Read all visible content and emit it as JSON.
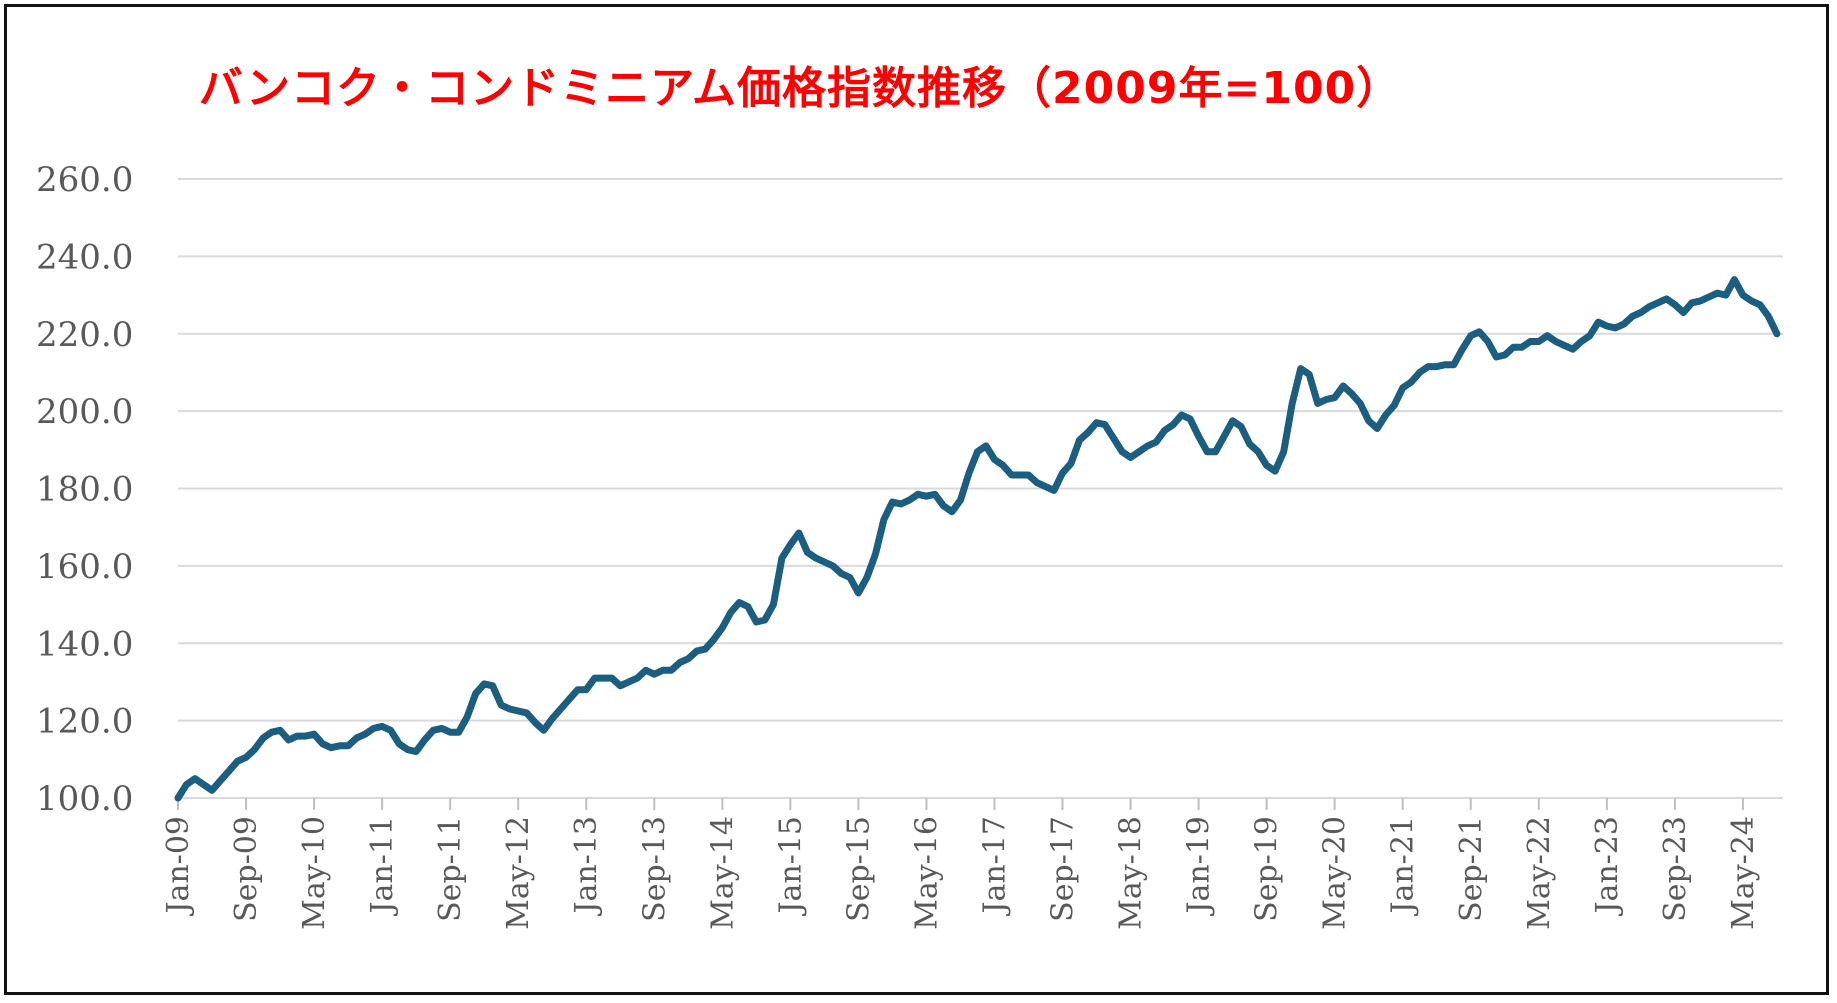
{
  "chart_data": {
    "type": "line",
    "title": "バンコク・コンドミニアム価格指数推移（2009年=100）",
    "xlabel": "",
    "ylabel": "",
    "ylim": [
      100,
      260
    ],
    "y_ticks": [
      "100.0",
      "120.0",
      "140.0",
      "160.0",
      "180.0",
      "200.0",
      "220.0",
      "240.0",
      "260.0"
    ],
    "x_tick_labels": [
      "Jan-09",
      "Sep-09",
      "May-10",
      "Jan-11",
      "Sep-11",
      "May-12",
      "Jan-13",
      "Sep-13",
      "May-14",
      "Jan-15",
      "Sep-15",
      "May-16",
      "Jan-17",
      "Sep-17",
      "May-18",
      "Jan-19",
      "Sep-19",
      "May-20",
      "Jan-21",
      "Sep-21",
      "May-22",
      "Jan-23",
      "Sep-23",
      "May-24"
    ],
    "grid": true,
    "legend": "none",
    "line_color": "#1b5e80",
    "grid_color": "#d9d9d9",
    "start": "2009-01",
    "frequency": "monthly",
    "series": [
      {
        "values": [
          100.0,
          103.5,
          105.0,
          103.5,
          102.0,
          104.5,
          107.0,
          109.5,
          110.5,
          112.5,
          115.5,
          117.0,
          117.5,
          115.0,
          116.0,
          116.0,
          116.5,
          114.0,
          113.0,
          113.5,
          113.5,
          115.5,
          116.5,
          118.0,
          118.5,
          117.5,
          114.0,
          112.5,
          112.0,
          115.0,
          117.5,
          118.0,
          117.0,
          117.0,
          121.0,
          127.0,
          129.5,
          129.0,
          124.0,
          123.0,
          122.5,
          122.0,
          119.5,
          117.5,
          120.5,
          123.0,
          125.5,
          128.0,
          128.0,
          131.0,
          131.0,
          131.0,
          129.0,
          130.0,
          131.0,
          133.0,
          132.0,
          133.0,
          133.0,
          135.0,
          136.0,
          138.0,
          138.5,
          141.0,
          144.0,
          148.0,
          150.5,
          149.5,
          145.5,
          146.0,
          150.0,
          162.0,
          165.5,
          168.5,
          163.5,
          162.0,
          161.0,
          160.0,
          158.0,
          157.0,
          153.0,
          157.0,
          163.0,
          172.0,
          176.5,
          176.0,
          177.0,
          178.5,
          178.0,
          178.5,
          175.5,
          174.0,
          177.0,
          184.0,
          189.5,
          191.0,
          187.5,
          186.0,
          183.5,
          183.5,
          183.5,
          181.5,
          180.5,
          179.5,
          184.0,
          186.5,
          192.5,
          194.5,
          197.0,
          196.5,
          193.0,
          189.5,
          188.0,
          189.5,
          191.0,
          192.0,
          195.0,
          196.5,
          199.0,
          198.0,
          193.5,
          189.5,
          189.5,
          193.5,
          197.5,
          196.0,
          191.5,
          189.5,
          186.0,
          184.5,
          189.5,
          202.0,
          211.0,
          209.5,
          202.0,
          203.0,
          203.5,
          206.5,
          204.5,
          202.0,
          197.5,
          195.5,
          199.0,
          201.5,
          206.0,
          207.5,
          210.0,
          211.5,
          211.5,
          212.0,
          212.0,
          216.0,
          219.5,
          220.5,
          218.0,
          214.0,
          214.5,
          216.5,
          216.5,
          218.0,
          218.0,
          219.5,
          218.0,
          217.0,
          216.0,
          218.0,
          219.5,
          223.0,
          222.0,
          221.5,
          222.5,
          224.5,
          225.5,
          227.0,
          228.0,
          229.0,
          227.5,
          225.5,
          228.0,
          228.5,
          229.5,
          230.5,
          230.0,
          234.0,
          230.0,
          228.5,
          227.5,
          224.5,
          220.0
        ]
      }
    ]
  }
}
